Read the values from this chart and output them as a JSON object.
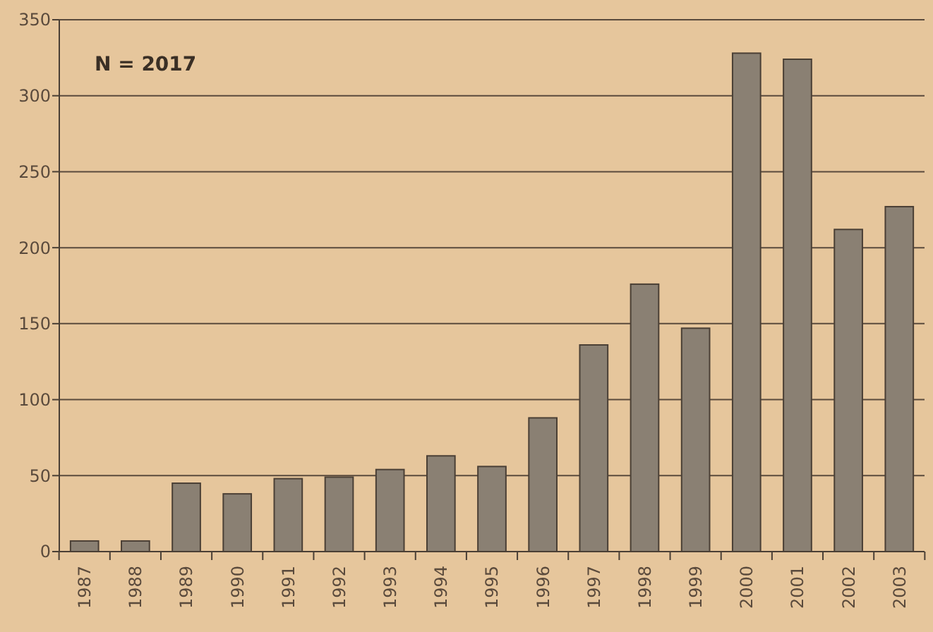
{
  "chart_data": {
    "type": "bar",
    "annotations": [
      "N = 2017"
    ],
    "categories": [
      "1987",
      "1988",
      "1989",
      "1990",
      "1991",
      "1992",
      "1993",
      "1994",
      "1995",
      "1996",
      "1997",
      "1998",
      "1999",
      "2000",
      "2001",
      "2002",
      "2003"
    ],
    "values": [
      7,
      7,
      45,
      38,
      48,
      49,
      54,
      63,
      56,
      88,
      136,
      176,
      147,
      328,
      324,
      212,
      227
    ],
    "color": "#8a8073",
    "ylim": [
      0,
      350
    ],
    "yticks": [
      0,
      50,
      100,
      150,
      200,
      250,
      300,
      350
    ],
    "grid": "y"
  }
}
